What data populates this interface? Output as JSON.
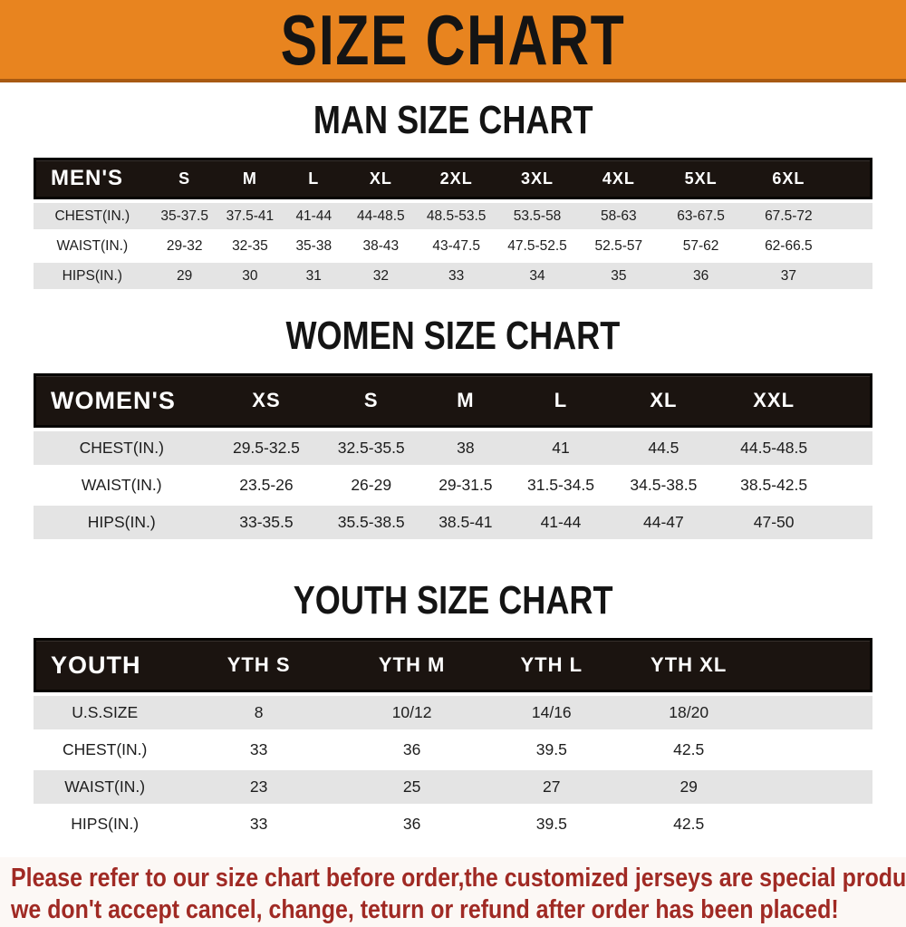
{
  "banner": {
    "title": "SIZE CHART"
  },
  "colors": {
    "banner_orange": "#E8841F",
    "header_bar_black": "#1B1410",
    "row_stripe_gray": "#E4E4E4",
    "footer_red": "#A02A24"
  },
  "sections": [
    {
      "heading": "MAN SIZE CHART",
      "table": {
        "header_label": "MEN'S",
        "columns": [
          "S",
          "M",
          "L",
          "XL",
          "2XL",
          "3XL",
          "4XL",
          "5XL",
          "6XL"
        ],
        "rows": [
          {
            "label": "CHEST(IN.)",
            "values": [
              "35-37.5",
              "37.5-41",
              "41-44",
              "44-48.5",
              "48.5-53.5",
              "53.5-58",
              "58-63",
              "63-67.5",
              "67.5-72"
            ]
          },
          {
            "label": "WAIST(IN.)",
            "values": [
              "29-32",
              "32-35",
              "35-38",
              "38-43",
              "43-47.5",
              "47.5-52.5",
              "52.5-57",
              "57-62",
              "62-66.5"
            ]
          },
          {
            "label": "HIPS(IN.)",
            "values": [
              "29",
              "30",
              "31",
              "32",
              "33",
              "34",
              "35",
              "36",
              "37"
            ]
          }
        ]
      }
    },
    {
      "heading": "WOMEN SIZE CHART",
      "table": {
        "header_label": "WOMEN'S",
        "columns": [
          "XS",
          "S",
          "M",
          "L",
          "XL",
          "XXL"
        ],
        "rows": [
          {
            "label": "CHEST(IN.)",
            "values": [
              "29.5-32.5",
              "32.5-35.5",
              "38",
              "41",
              "44.5",
              "44.5-48.5"
            ]
          },
          {
            "label": "WAIST(IN.)",
            "values": [
              "23.5-26",
              "26-29",
              "29-31.5",
              "31.5-34.5",
              "34.5-38.5",
              "38.5-42.5"
            ]
          },
          {
            "label": "HIPS(IN.)",
            "values": [
              "33-35.5",
              "35.5-38.5",
              "38.5-41",
              "41-44",
              "44-47",
              "47-50"
            ]
          }
        ]
      }
    },
    {
      "heading": "YOUTH SIZE CHART",
      "table": {
        "header_label": "YOUTH",
        "columns": [
          "YTH S",
          "YTH M",
          "YTH L",
          "YTH XL"
        ],
        "rows": [
          {
            "label": "U.S.SIZE",
            "values": [
              "8",
              "10/12",
              "14/16",
              "18/20"
            ]
          },
          {
            "label": "CHEST(IN.)",
            "values": [
              "33",
              "36",
              "39.5",
              "42.5"
            ]
          },
          {
            "label": "WAIST(IN.)",
            "values": [
              "23",
              "25",
              "27",
              "29"
            ]
          },
          {
            "label": "HIPS(IN.)",
            "values": [
              "33",
              "36",
              "39.5",
              "42.5"
            ]
          }
        ]
      }
    }
  ],
  "footer": {
    "line1": "Please refer to our size chart before order,the customized jerseys are special products,",
    "line2": "we don't accept cancel, change, teturn or refund after order has been placed!"
  }
}
